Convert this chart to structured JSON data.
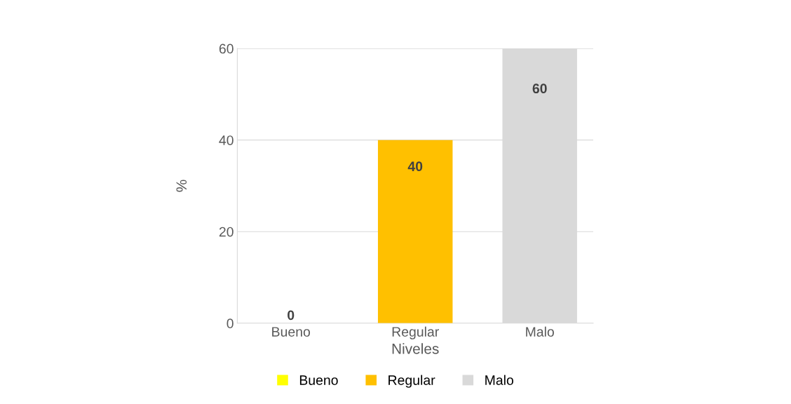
{
  "chart_data": {
    "type": "bar",
    "categories": [
      "Bueno",
      "Regular",
      "Malo"
    ],
    "xlabel": "Niveles",
    "ylabel": "%",
    "series": [
      {
        "name": "Bueno",
        "color": "#ffff00",
        "values": [
          0,
          null,
          null
        ]
      },
      {
        "name": "Regular",
        "color": "#ffc000",
        "values": [
          null,
          40,
          null
        ]
      },
      {
        "name": "Malo",
        "color": "#d9d9d9",
        "values": [
          null,
          null,
          60
        ]
      }
    ],
    "ylim": [
      0,
      60
    ],
    "yticks": [
      0,
      20,
      40,
      60
    ],
    "grid": "y",
    "legend": "bottom",
    "data_labels": true
  }
}
